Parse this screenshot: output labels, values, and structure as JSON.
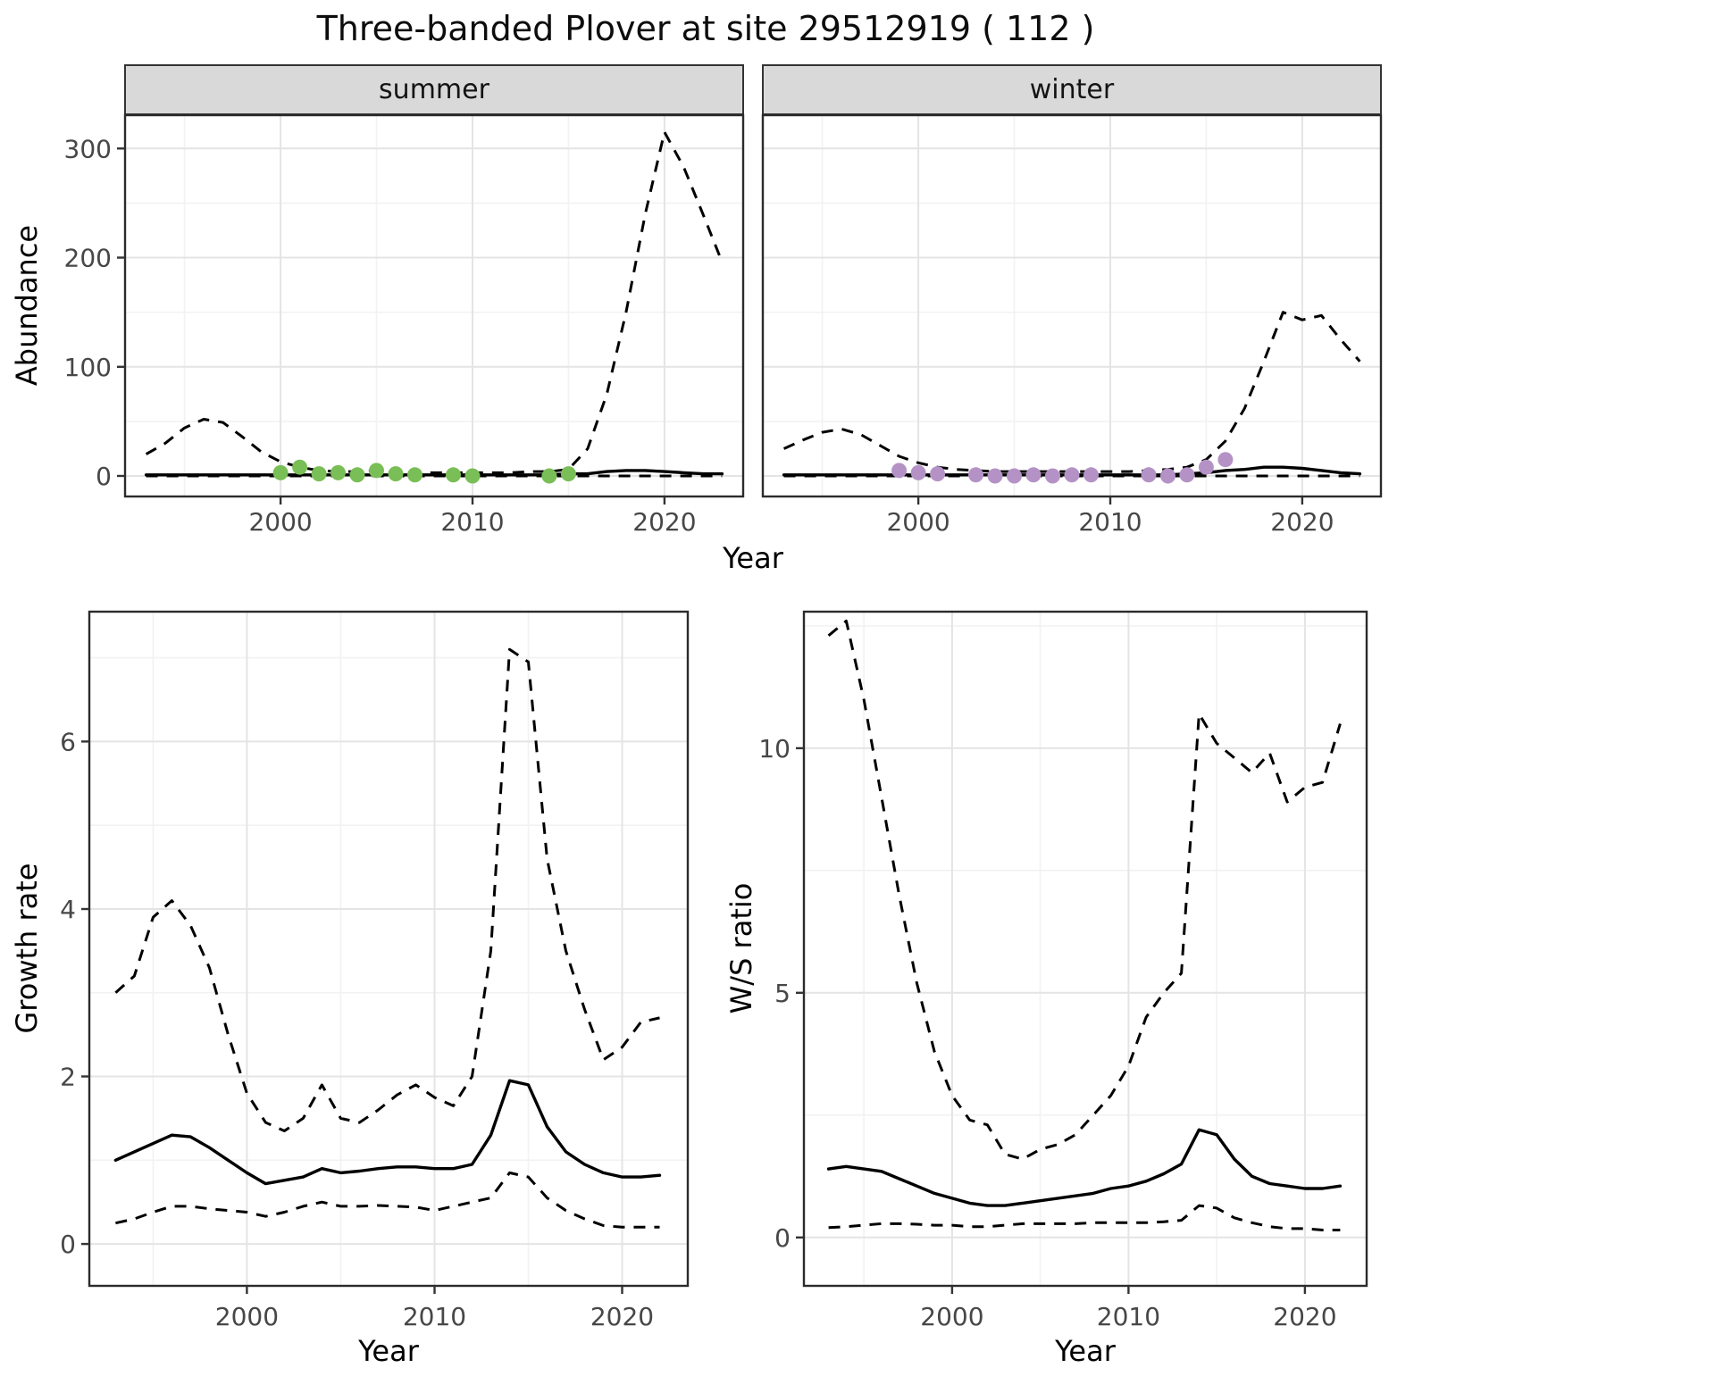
{
  "title": "Three-banded Plover at site 29512919 ( 112 )",
  "colors": {
    "summer_points": "#79BE56",
    "winter_points": "#B592C6",
    "line": "#000000",
    "strip_background": "#D9D9D9",
    "grid": "#E4E4E4"
  },
  "chart_data": [
    {
      "id": "abundance",
      "type": "line",
      "xlabel": "Year",
      "ylabel": "Abundance",
      "xlim": [
        1991.9,
        2024.1
      ],
      "ylim": [
        -18.8,
        330.5
      ],
      "xticks": [
        2000,
        2010,
        2020
      ],
      "xticks_minor": [
        1995,
        2005,
        2015
      ],
      "yticks": [
        0,
        100,
        200,
        300
      ],
      "yticks_minor": [
        50,
        150,
        250
      ],
      "legend": "none",
      "facets": [
        {
          "label": "summer",
          "point_color": "#79BE56",
          "years": [
            1993,
            1994,
            1995,
            1996,
            1997,
            1998,
            1999,
            2000,
            2001,
            2002,
            2003,
            2004,
            2005,
            2006,
            2007,
            2008,
            2009,
            2010,
            2011,
            2012,
            2013,
            2014,
            2015,
            2016,
            2017,
            2018,
            2019,
            2020,
            2021,
            2022,
            2023
          ],
          "fit": [
            1,
            1,
            1,
            1,
            1,
            1,
            1,
            1,
            1,
            1,
            1,
            1,
            1,
            1,
            1,
            1,
            1,
            1,
            1,
            1,
            1,
            1,
            2,
            2,
            4,
            5,
            5,
            4,
            3,
            2,
            2
          ],
          "upper": [
            20,
            30,
            44,
            52,
            49,
            36,
            22,
            13,
            8,
            5,
            4,
            4,
            5,
            4,
            3,
            3,
            3,
            3,
            3,
            3,
            4,
            4,
            6,
            25,
            75,
            150,
            240,
            315,
            283,
            240,
            196
          ],
          "lower": [
            0,
            0,
            0,
            0,
            0,
            0,
            0,
            0,
            0,
            0,
            0,
            0,
            0,
            0,
            0,
            0,
            0,
            0,
            0,
            0,
            0,
            0,
            0,
            0,
            0,
            0,
            0,
            0,
            0,
            0,
            0
          ],
          "obs_x": [
            2000,
            2001,
            2002,
            2003,
            2004,
            2005,
            2006,
            2007,
            2009,
            2010,
            2014,
            2015
          ],
          "obs_y": [
            3,
            8,
            2,
            3,
            1,
            5,
            2,
            1,
            1,
            0,
            0,
            2
          ]
        },
        {
          "label": "winter",
          "point_color": "#B592C6",
          "years": [
            1993,
            1994,
            1995,
            1996,
            1997,
            1998,
            1999,
            2000,
            2001,
            2002,
            2003,
            2004,
            2005,
            2006,
            2007,
            2008,
            2009,
            2010,
            2011,
            2012,
            2013,
            2014,
            2015,
            2016,
            2017,
            2018,
            2019,
            2020,
            2021,
            2022,
            2023
          ],
          "fit": [
            1,
            1,
            1,
            1,
            1,
            1,
            1,
            1,
            1,
            1,
            1,
            1,
            1,
            1,
            1,
            1,
            1,
            1,
            1,
            1,
            1,
            2,
            3,
            5,
            6,
            8,
            8,
            7,
            5,
            3,
            2
          ],
          "upper": [
            25,
            33,
            40,
            43,
            38,
            28,
            18,
            12,
            8,
            6,
            5,
            4,
            4,
            4,
            4,
            4,
            4,
            4,
            4,
            5,
            6,
            8,
            15,
            32,
            62,
            105,
            150,
            143,
            147,
            125,
            105
          ],
          "lower": [
            0,
            0,
            0,
            0,
            0,
            0,
            0,
            0,
            0,
            0,
            0,
            0,
            0,
            0,
            0,
            0,
            0,
            0,
            0,
            0,
            0,
            0,
            0,
            0,
            0,
            0,
            0,
            0,
            0,
            0,
            0
          ],
          "obs_x": [
            1999,
            2000,
            2001,
            2003,
            2004,
            2005,
            2006,
            2007,
            2008,
            2009,
            2012,
            2013,
            2014,
            2015,
            2016
          ],
          "obs_y": [
            5,
            3,
            2,
            1,
            0,
            0,
            1,
            0,
            1,
            1,
            1,
            0,
            1,
            8,
            15
          ]
        }
      ]
    },
    {
      "id": "growth_rate",
      "type": "line",
      "xlabel": "Year",
      "ylabel": "Growth rate",
      "xlim": [
        1991.6,
        2023.5
      ],
      "ylim": [
        -0.5,
        7.55
      ],
      "xticks": [
        2000,
        2010,
        2020
      ],
      "xticks_minor": [
        1995,
        2005,
        2015
      ],
      "yticks": [
        0,
        2,
        4,
        6
      ],
      "yticks_minor": [
        1,
        3,
        5,
        7
      ],
      "legend": "none",
      "years": [
        1993,
        1994,
        1995,
        1996,
        1997,
        1998,
        1999,
        2000,
        2001,
        2002,
        2003,
        2004,
        2005,
        2006,
        2007,
        2008,
        2009,
        2010,
        2011,
        2012,
        2013,
        2014,
        2015,
        2016,
        2017,
        2018,
        2019,
        2020,
        2021,
        2022
      ],
      "fit": [
        1.0,
        1.1,
        1.2,
        1.3,
        1.28,
        1.15,
        1.0,
        0.85,
        0.72,
        0.76,
        0.8,
        0.9,
        0.85,
        0.87,
        0.9,
        0.92,
        0.92,
        0.9,
        0.9,
        0.95,
        1.3,
        1.95,
        1.9,
        1.4,
        1.1,
        0.95,
        0.85,
        0.8,
        0.8,
        0.82
      ],
      "upper": [
        3.0,
        3.2,
        3.9,
        4.1,
        3.8,
        3.3,
        2.5,
        1.8,
        1.45,
        1.35,
        1.5,
        1.9,
        1.5,
        1.45,
        1.6,
        1.78,
        1.9,
        1.75,
        1.65,
        2.0,
        3.5,
        7.1,
        6.95,
        4.6,
        3.5,
        2.8,
        2.2,
        2.35,
        2.65,
        2.7
      ],
      "lower": [
        0.25,
        0.3,
        0.38,
        0.45,
        0.45,
        0.42,
        0.4,
        0.38,
        0.33,
        0.38,
        0.45,
        0.5,
        0.45,
        0.45,
        0.46,
        0.45,
        0.44,
        0.4,
        0.45,
        0.5,
        0.55,
        0.85,
        0.8,
        0.55,
        0.4,
        0.3,
        0.22,
        0.2,
        0.2,
        0.2
      ]
    },
    {
      "id": "ws_ratio",
      "type": "line",
      "xlabel": "Year",
      "ylabel": "W/S ratio",
      "xlim": [
        1991.6,
        2023.5
      ],
      "ylim": [
        -0.99,
        12.79
      ],
      "xticks": [
        2000,
        2010,
        2020
      ],
      "xticks_minor": [
        1995,
        2005,
        2015
      ],
      "yticks": [
        0,
        5,
        10
      ],
      "yticks_minor": [
        2.5,
        7.5,
        12.5
      ],
      "legend": "none",
      "years": [
        1993,
        1994,
        1995,
        1996,
        1997,
        1998,
        1999,
        2000,
        2001,
        2002,
        2003,
        2004,
        2005,
        2006,
        2007,
        2008,
        2009,
        2010,
        2011,
        2012,
        2013,
        2014,
        2015,
        2016,
        2017,
        2018,
        2019,
        2020,
        2021,
        2022
      ],
      "fit": [
        1.4,
        1.45,
        1.4,
        1.35,
        1.2,
        1.05,
        0.9,
        0.8,
        0.7,
        0.65,
        0.65,
        0.7,
        0.75,
        0.8,
        0.85,
        0.9,
        1.0,
        1.05,
        1.15,
        1.3,
        1.5,
        2.2,
        2.1,
        1.6,
        1.25,
        1.1,
        1.05,
        1.0,
        1.0,
        1.05
      ],
      "upper": [
        12.3,
        12.6,
        11.0,
        9.0,
        7.0,
        5.2,
        3.8,
        2.9,
        2.4,
        2.3,
        1.7,
        1.6,
        1.8,
        1.9,
        2.1,
        2.5,
        2.9,
        3.5,
        4.5,
        5.0,
        5.4,
        10.7,
        10.1,
        9.8,
        9.5,
        9.9,
        8.9,
        9.2,
        9.3,
        10.5
      ],
      "lower": [
        0.2,
        0.22,
        0.25,
        0.28,
        0.28,
        0.27,
        0.25,
        0.25,
        0.22,
        0.22,
        0.25,
        0.28,
        0.28,
        0.28,
        0.28,
        0.3,
        0.3,
        0.3,
        0.3,
        0.32,
        0.35,
        0.65,
        0.6,
        0.4,
        0.3,
        0.22,
        0.18,
        0.18,
        0.15,
        0.15
      ]
    }
  ]
}
